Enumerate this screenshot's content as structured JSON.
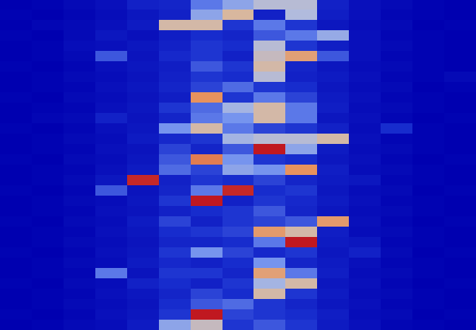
{
  "chart_data": {
    "type": "heatmap",
    "tick_labels": false,
    "cells": [
      [
        0.05,
        0.06,
        0.08,
        0.1,
        0.15,
        0.16,
        0.3,
        0.4,
        0.5,
        0.5,
        0.15,
        0.1,
        0.08,
        0.06,
        0.05
      ],
      [
        0.06,
        0.05,
        0.07,
        0.09,
        0.12,
        0.15,
        0.4,
        0.62,
        0.15,
        0.48,
        0.14,
        0.1,
        0.07,
        0.06,
        0.05
      ],
      [
        0.05,
        0.07,
        0.08,
        0.1,
        0.13,
        0.6,
        0.6,
        0.2,
        0.3,
        0.2,
        0.12,
        0.09,
        0.08,
        0.05,
        0.06
      ],
      [
        0.06,
        0.05,
        0.08,
        0.12,
        0.1,
        0.14,
        0.18,
        0.16,
        0.25,
        0.3,
        0.42,
        0.1,
        0.07,
        0.06,
        0.05
      ],
      [
        0.05,
        0.06,
        0.09,
        0.1,
        0.12,
        0.15,
        0.2,
        0.18,
        0.5,
        0.2,
        0.14,
        0.1,
        0.08,
        0.06,
        0.05
      ],
      [
        0.05,
        0.06,
        0.08,
        0.25,
        0.11,
        0.17,
        0.2,
        0.15,
        0.55,
        0.7,
        0.25,
        0.1,
        0.07,
        0.06,
        0.05
      ],
      [
        0.06,
        0.05,
        0.07,
        0.1,
        0.12,
        0.14,
        0.25,
        0.2,
        0.6,
        0.16,
        0.12,
        0.09,
        0.08,
        0.06,
        0.05
      ],
      [
        0.05,
        0.06,
        0.08,
        0.09,
        0.11,
        0.15,
        0.2,
        0.18,
        0.5,
        0.15,
        0.13,
        0.1,
        0.07,
        0.06,
        0.08
      ],
      [
        0.05,
        0.06,
        0.07,
        0.1,
        0.12,
        0.16,
        0.22,
        0.28,
        0.2,
        0.18,
        0.12,
        0.09,
        0.08,
        0.05,
        0.06
      ],
      [
        0.06,
        0.05,
        0.08,
        0.09,
        0.11,
        0.14,
        0.75,
        0.2,
        0.3,
        0.22,
        0.13,
        0.1,
        0.07,
        0.06,
        0.05
      ],
      [
        0.05,
        0.06,
        0.07,
        0.1,
        0.12,
        0.2,
        0.28,
        0.45,
        0.6,
        0.3,
        0.14,
        0.09,
        0.08,
        0.06,
        0.05
      ],
      [
        0.05,
        0.07,
        0.08,
        0.15,
        0.11,
        0.16,
        0.3,
        0.35,
        0.6,
        0.3,
        0.12,
        0.1,
        0.07,
        0.05,
        0.06
      ],
      [
        0.06,
        0.05,
        0.07,
        0.1,
        0.12,
        0.35,
        0.6,
        0.3,
        0.22,
        0.2,
        0.15,
        0.09,
        0.18,
        0.06,
        0.05
      ],
      [
        0.05,
        0.06,
        0.08,
        0.09,
        0.13,
        0.17,
        0.2,
        0.45,
        0.5,
        0.5,
        0.6,
        0.1,
        0.07,
        0.06,
        0.05
      ],
      [
        0.05,
        0.06,
        0.07,
        0.1,
        0.11,
        0.22,
        0.16,
        0.25,
        0.9,
        0.4,
        0.13,
        0.09,
        0.08,
        0.06,
        0.05
      ],
      [
        0.06,
        0.05,
        0.08,
        0.09,
        0.12,
        0.25,
        0.78,
        0.35,
        0.2,
        0.18,
        0.12,
        0.1,
        0.07,
        0.05,
        0.06
      ],
      [
        0.05,
        0.06,
        0.07,
        0.1,
        0.13,
        0.28,
        0.22,
        0.4,
        0.35,
        0.75,
        0.14,
        0.09,
        0.08,
        0.06,
        0.05
      ],
      [
        0.05,
        0.06,
        0.08,
        0.12,
        0.88,
        0.15,
        0.2,
        0.18,
        0.22,
        0.16,
        0.13,
        0.12,
        0.07,
        0.06,
        0.05
      ],
      [
        0.06,
        0.05,
        0.07,
        0.25,
        0.11,
        0.16,
        0.3,
        0.88,
        0.18,
        0.2,
        0.12,
        0.09,
        0.08,
        0.05,
        0.06
      ],
      [
        0.05,
        0.06,
        0.08,
        0.09,
        0.12,
        0.2,
        0.9,
        0.15,
        0.2,
        0.17,
        0.13,
        0.1,
        0.07,
        0.06,
        0.05
      ],
      [
        0.05,
        0.06,
        0.07,
        0.1,
        0.11,
        0.15,
        0.18,
        0.2,
        0.25,
        0.16,
        0.12,
        0.09,
        0.08,
        0.06,
        0.05
      ],
      [
        0.06,
        0.05,
        0.08,
        0.09,
        0.13,
        0.22,
        0.15,
        0.2,
        0.22,
        0.25,
        0.72,
        0.1,
        0.07,
        0.05,
        0.06
      ],
      [
        0.05,
        0.06,
        0.07,
        0.1,
        0.12,
        0.18,
        0.2,
        0.22,
        0.72,
        0.6,
        0.14,
        0.09,
        0.08,
        0.06,
        0.05
      ],
      [
        0.05,
        0.06,
        0.08,
        0.09,
        0.11,
        0.16,
        0.16,
        0.18,
        0.3,
        0.9,
        0.13,
        0.12,
        0.07,
        0.06,
        0.05
      ],
      [
        0.06,
        0.05,
        0.07,
        0.1,
        0.12,
        0.2,
        0.35,
        0.22,
        0.17,
        0.2,
        0.12,
        0.15,
        0.08,
        0.05,
        0.06
      ],
      [
        0.05,
        0.06,
        0.08,
        0.09,
        0.13,
        0.17,
        0.15,
        0.18,
        0.35,
        0.16,
        0.13,
        0.1,
        0.07,
        0.06,
        0.05
      ],
      [
        0.05,
        0.06,
        0.07,
        0.3,
        0.11,
        0.2,
        0.2,
        0.16,
        0.7,
        0.3,
        0.14,
        0.09,
        0.08,
        0.06,
        0.05
      ],
      [
        0.06,
        0.05,
        0.08,
        0.09,
        0.15,
        0.18,
        0.15,
        0.2,
        0.45,
        0.6,
        0.12,
        0.1,
        0.07,
        0.05,
        0.06
      ],
      [
        0.05,
        0.06,
        0.07,
        0.1,
        0.12,
        0.16,
        0.22,
        0.18,
        0.6,
        0.2,
        0.13,
        0.09,
        0.08,
        0.06,
        0.05
      ],
      [
        0.05,
        0.06,
        0.08,
        0.09,
        0.11,
        0.18,
        0.25,
        0.28,
        0.2,
        0.16,
        0.12,
        0.1,
        0.07,
        0.06,
        0.05
      ],
      [
        0.06,
        0.05,
        0.07,
        0.1,
        0.12,
        0.2,
        0.9,
        0.22,
        0.2,
        0.18,
        0.14,
        0.09,
        0.08,
        0.05,
        0.06
      ],
      [
        0.05,
        0.06,
        0.08,
        0.09,
        0.13,
        0.4,
        0.55,
        0.2,
        0.25,
        0.2,
        0.13,
        0.1,
        0.07,
        0.06,
        0.05
      ]
    ]
  }
}
